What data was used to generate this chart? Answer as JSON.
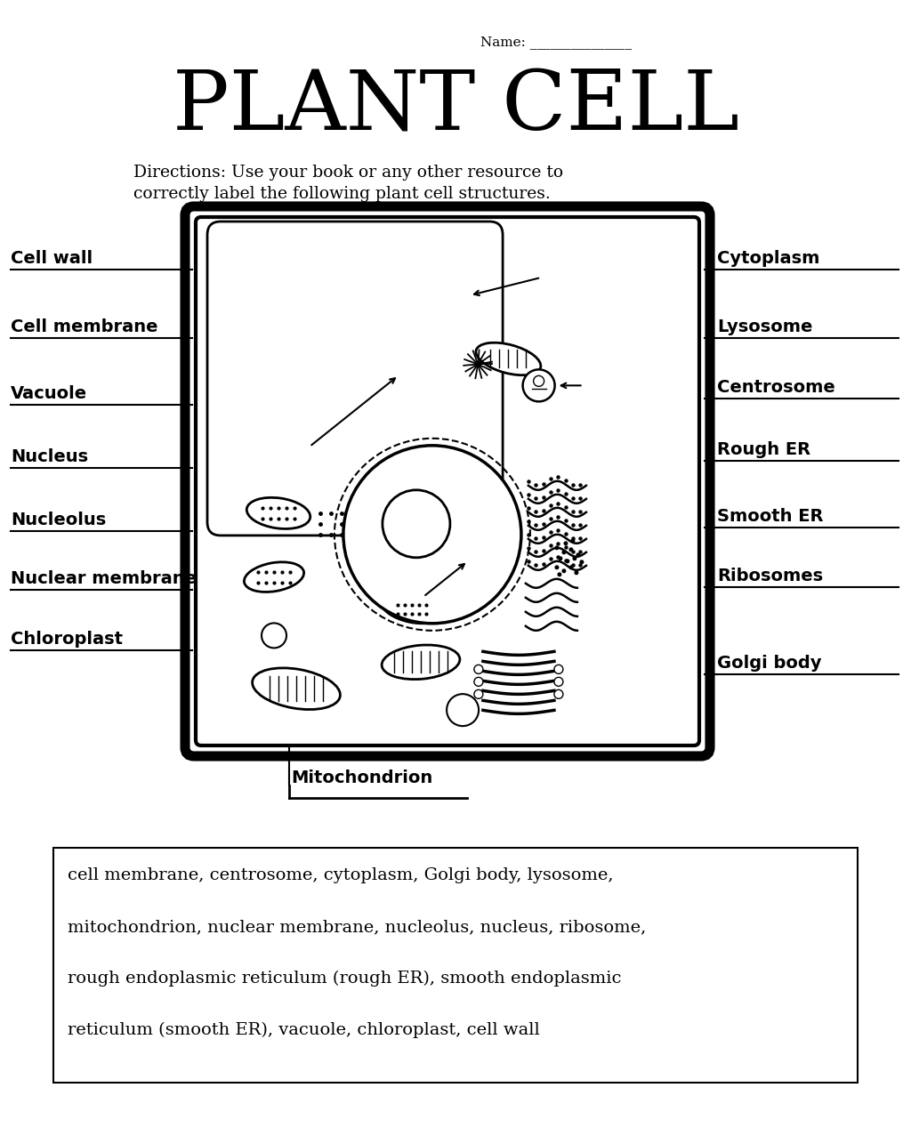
{
  "title": "PLANT CELL",
  "name_label": "Name: _______________",
  "directions_line1": "Directions: Use your book or any other resource to",
  "directions_line2": "correctly label the following plant cell structures.",
  "left_labels": [
    "Cell wall",
    "Cell membrane",
    "Vacuole",
    "Nucleus",
    "Nucleolus",
    "Nuclear membrane",
    "Chloroplast"
  ],
  "right_labels": [
    "Cytoplasm",
    "Lysosome",
    "Centrosome",
    "Rough ER",
    "Smooth ER",
    "Ribosomes",
    "Golgi body"
  ],
  "bottom_label": "Mitochondrion",
  "word_bank_line1": "cell membrane, centrosome, cytoplasm, Golgi body, lysosome,",
  "word_bank_line2": "mitochondrion, nuclear membrane, nucleolus, nucleus, ribosome,",
  "word_bank_line3": "rough endoplasmic reticulum (rough ER), smooth endoplasmic",
  "word_bank_line4": "reticulum (smooth ER), vacuole, chloroplast, cell wall",
  "bg_color": "#ffffff"
}
